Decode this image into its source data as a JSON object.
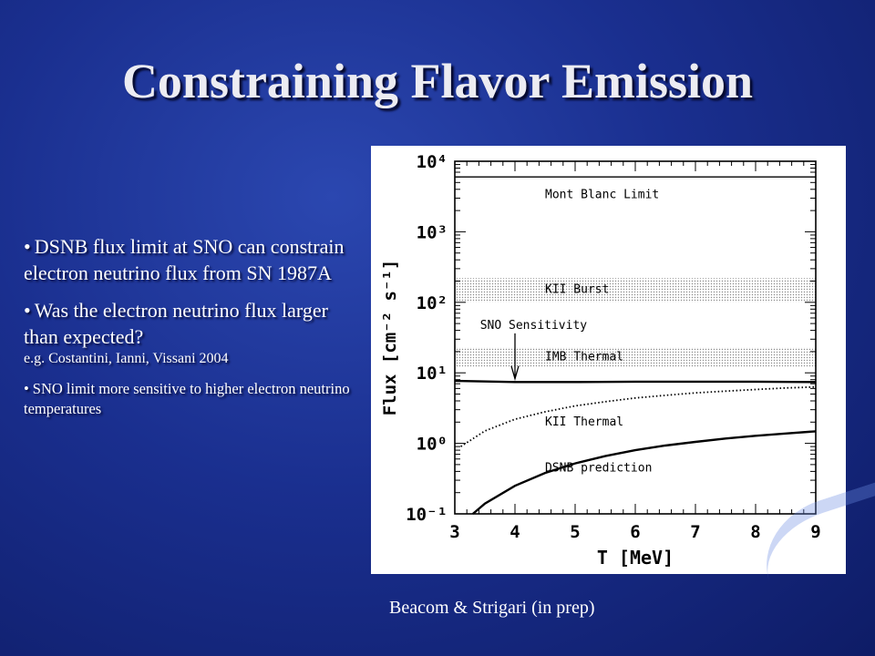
{
  "slide": {
    "title": "Constraining Flavor Emission",
    "bullets": [
      {
        "text": "DSNB flux limit at SNO can constrain electron neutrino flux from SN 1987A"
      },
      {
        "text": "Was the electron neutrino flux larger than expected?",
        "sub": "e.g. Costantini, Ianni, Vissani 2004"
      },
      {
        "text": "SNO limit more sensitive to higher electron neutrino temperatures"
      }
    ],
    "bullet_symbol": "•",
    "caption": "Beacom & Strigari (in prep)"
  },
  "chart_data": {
    "type": "line",
    "xlabel": "T [MeV]",
    "ylabel": "Flux [cm⁻² s⁻¹]",
    "xlim": [
      3,
      9
    ],
    "ylim": [
      0.1,
      10000
    ],
    "yscale": "log",
    "xticks": [
      3,
      4,
      5,
      6,
      7,
      8,
      9
    ],
    "yticks": [
      {
        "value": 0.1,
        "label": "10⁻¹"
      },
      {
        "value": 1,
        "label": "10⁰"
      },
      {
        "value": 10,
        "label": "10¹"
      },
      {
        "value": 100,
        "label": "10²"
      },
      {
        "value": 1000,
        "label": "10³"
      },
      {
        "value": 10000,
        "label": "10⁴"
      }
    ],
    "grid": false,
    "series": [
      {
        "label": "Mont Blanc Limit",
        "style": "solid-thin",
        "x": [
          3,
          9
        ],
        "y": [
          6000,
          6000
        ]
      },
      {
        "label": "SNO Sensitivity",
        "style": "solid-thick",
        "x": [
          3,
          4,
          5,
          6,
          7,
          8,
          9
        ],
        "y": [
          7.7,
          7.4,
          7.4,
          7.5,
          7.5,
          7.5,
          7.4
        ]
      },
      {
        "label": "KII Thermal",
        "style": "dotted",
        "x": [
          3.1,
          3.5,
          4.0,
          4.5,
          5.0,
          5.5,
          6.0,
          6.5,
          7.0,
          7.5,
          8.0,
          8.5,
          9.0
        ],
        "y": [
          0.9,
          1.5,
          2.2,
          2.8,
          3.4,
          3.9,
          4.4,
          4.8,
          5.2,
          5.5,
          5.8,
          6.1,
          6.3
        ]
      },
      {
        "label": "DSNB prediction",
        "style": "solid-thick",
        "x": [
          3.3,
          3.5,
          4.0,
          4.5,
          5.0,
          5.5,
          6.0,
          6.5,
          7.0,
          7.5,
          8.0,
          8.5,
          9.0
        ],
        "y": [
          0.1,
          0.14,
          0.25,
          0.38,
          0.52,
          0.66,
          0.8,
          0.93,
          1.05,
          1.17,
          1.28,
          1.38,
          1.48
        ]
      }
    ],
    "bands": [
      {
        "label": "KII Burst",
        "y": [
          100,
          220
        ]
      },
      {
        "label": "IMB Thermal",
        "y": [
          12,
          23
        ]
      }
    ],
    "annotations": [
      {
        "text": "SNO Sensitivity",
        "arrow_x": 4.0,
        "arrow_from_y": 55,
        "arrow_to_y": 8
      }
    ]
  }
}
